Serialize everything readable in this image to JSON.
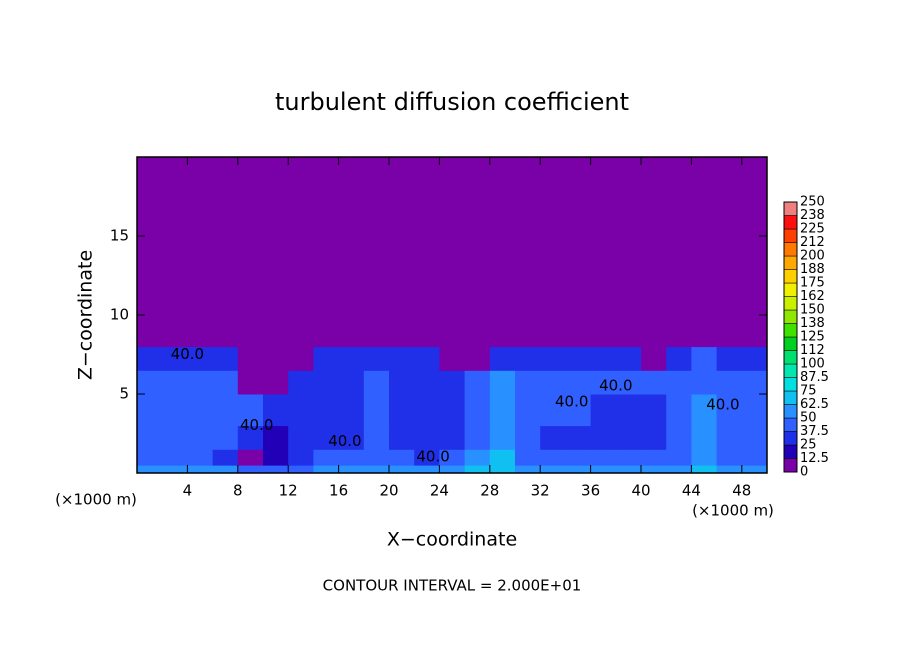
{
  "chart_data": {
    "type": "contour",
    "title": "turbulent diffusion coefficient",
    "xlabel": "X−coordinate",
    "ylabel": "Z−coordinate",
    "x_unit": "(×1000 m)",
    "footer": "CONTOUR INTERVAL = 2.000E+01",
    "xlim": [
      0,
      50
    ],
    "ylim": [
      0,
      20
    ],
    "xticks": [
      4,
      8,
      12,
      16,
      20,
      24,
      28,
      32,
      36,
      40,
      44,
      48
    ],
    "yticks": [
      5,
      10,
      15
    ],
    "field": {
      "x_edges": [
        0,
        2,
        4,
        6,
        8,
        10,
        12,
        14,
        16,
        18,
        20,
        22,
        24,
        26,
        28,
        30,
        32,
        34,
        36,
        38,
        40,
        42,
        44,
        46,
        48,
        50
      ],
      "z_edges": [
        0,
        0.5,
        1.5,
        3,
        5,
        6.5,
        8,
        20
      ],
      "values": [
        [
          55,
          60,
          55,
          50,
          45,
          40,
          45,
          50,
          50,
          55,
          55,
          50,
          55,
          70,
          72,
          60,
          55,
          55,
          55,
          55,
          55,
          55,
          65,
          55,
          55
        ],
        [
          40,
          42,
          45,
          30,
          10,
          15,
          35,
          38,
          40,
          45,
          40,
          35,
          38,
          55,
          65,
          45,
          40,
          40,
          40,
          40,
          38,
          40,
          55,
          42,
          40
        ],
        [
          38,
          40,
          45,
          40,
          30,
          20,
          35,
          30,
          30,
          40,
          35,
          30,
          35,
          48,
          55,
          40,
          35,
          30,
          30,
          30,
          35,
          38,
          50,
          40,
          38
        ],
        [
          42,
          45,
          48,
          45,
          40,
          30,
          30,
          28,
          28,
          38,
          32,
          30,
          32,
          40,
          50,
          48,
          42,
          38,
          35,
          32,
          35,
          40,
          50,
          45,
          42
        ],
        [
          40,
          45,
          48,
          45,
          10,
          8,
          30,
          28,
          28,
          38,
          32,
          30,
          30,
          42,
          50,
          48,
          45,
          42,
          40,
          38,
          38,
          42,
          48,
          45,
          42
        ],
        [
          28,
          30,
          35,
          30,
          8,
          6,
          8,
          28,
          30,
          35,
          30,
          28,
          8,
          8,
          30,
          35,
          35,
          33,
          30,
          30,
          8,
          35,
          40,
          30,
          28
        ],
        [
          5,
          5,
          5,
          5,
          5,
          5,
          5,
          5,
          5,
          5,
          5,
          5,
          5,
          5,
          5,
          5,
          5,
          5,
          5,
          5,
          5,
          5,
          5,
          5,
          5
        ]
      ]
    },
    "annotations": [
      {
        "text": "40.0",
        "x": 4,
        "z": 7.5
      },
      {
        "text": "40.0",
        "x": 9.5,
        "z": 3
      },
      {
        "text": "40.0",
        "x": 16.5,
        "z": 2
      },
      {
        "text": "40.0",
        "x": 23.5,
        "z": 1
      },
      {
        "text": "40.0",
        "x": 34.5,
        "z": 4.5
      },
      {
        "text": "40.0",
        "x": 38,
        "z": 5.5
      },
      {
        "text": "40.0",
        "x": 46.5,
        "z": 4.3
      }
    ],
    "colorbar": {
      "levels": [
        0,
        12.5,
        25,
        37.5,
        50,
        62.5,
        75,
        87.5,
        100,
        {
          "value": 112.5,
          "label": "112"
        },
        125,
        {
          "value": 137.5,
          "label": "138"
        },
        150,
        {
          "value": 162.5,
          "label": "162"
        },
        175,
        {
          "value": 187.5,
          "label": "188"
        },
        200,
        {
          "value": 212.5,
          "label": "212"
        },
        225,
        {
          "value": 237.5,
          "label": "238"
        },
        250
      ],
      "colors": [
        "#7a00a8",
        "#2200b8",
        "#2030e8",
        "#3060ff",
        "#2890ff",
        "#10c0f0",
        "#00e0e0",
        "#00e8b0",
        "#00e070",
        "#00d020",
        "#40e000",
        "#90e800",
        "#c8f000",
        "#f0f000",
        "#ffd000",
        "#ffa800",
        "#ff7800",
        "#ff4000",
        "#ff1010",
        "#f08080"
      ]
    }
  }
}
